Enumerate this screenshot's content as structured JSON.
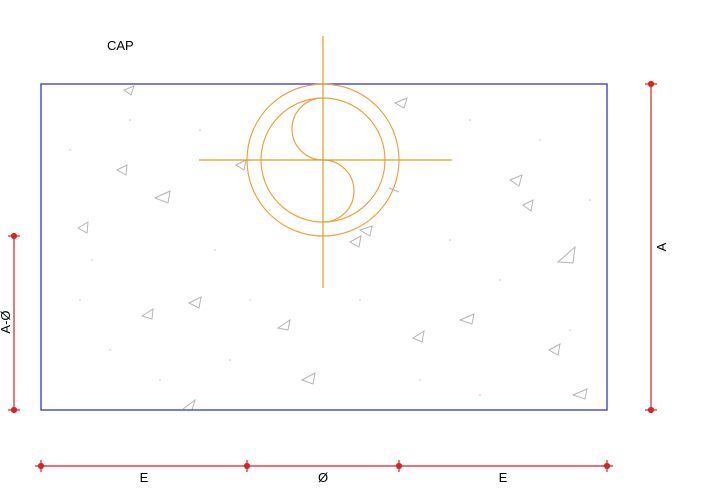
{
  "drawing": {
    "title": "CAP",
    "dims": {
      "a_right": "A",
      "a_minus_phi_left": "A-Ø",
      "e_left": "E",
      "phi_center": "Ø",
      "e_right": "E"
    },
    "colors": {
      "cap_outline": "#3333dd",
      "dimension": "#dd2222",
      "pile_circle": "#f0a040",
      "crosshair": "#e0a020",
      "hatch": "#b0b0b0"
    }
  }
}
